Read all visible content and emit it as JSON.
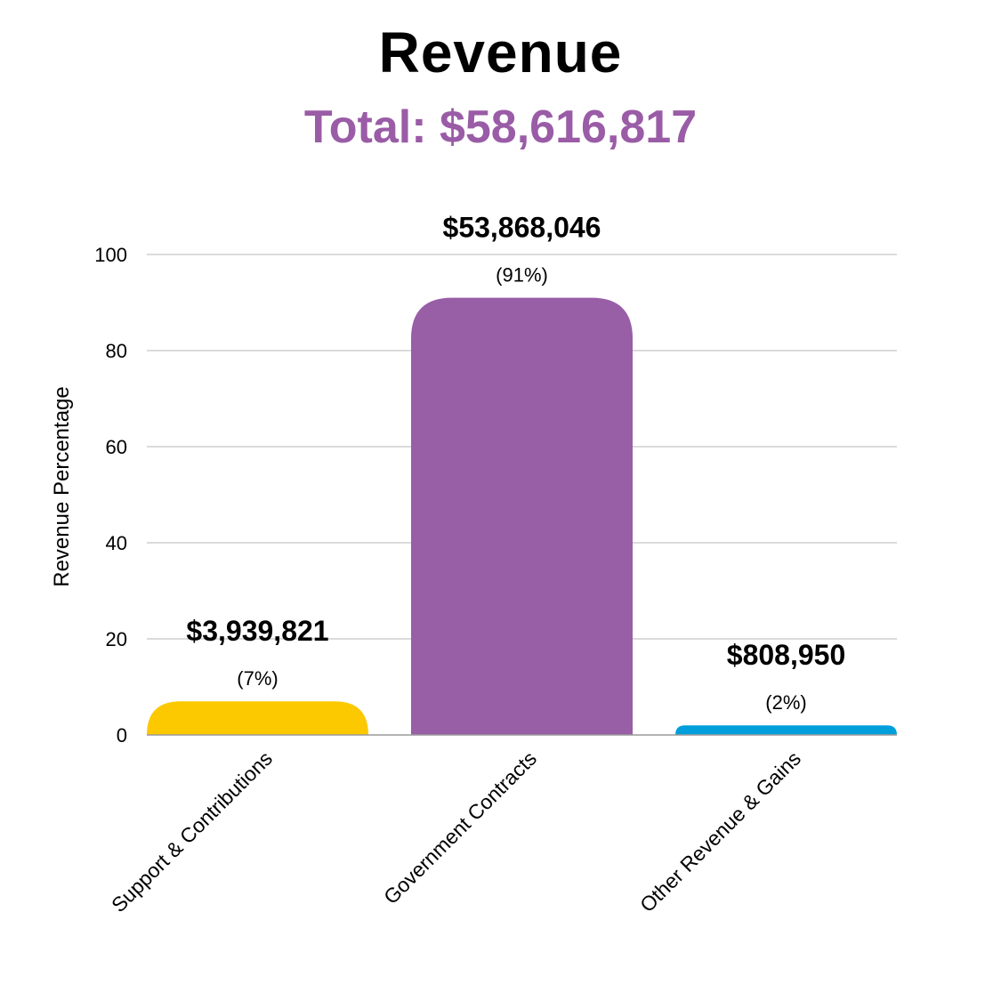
{
  "title": "Revenue",
  "subtitle": "Total: $58,616,817",
  "chart_data": {
    "type": "bar",
    "title": "Revenue",
    "subtitle": "Total: $58,616,817",
    "xlabel": "",
    "ylabel": "Revenue Percentage",
    "ylim": [
      0,
      100
    ],
    "yticks": [
      0,
      20,
      40,
      60,
      80,
      100
    ],
    "grid": true,
    "categories": [
      "Support & Contributions",
      "Government Contracts",
      "Other Revenue & Gains"
    ],
    "values": [
      7,
      91,
      2
    ],
    "amount_labels": [
      "$3,939,821",
      "$53,868,046",
      "$808,950"
    ],
    "percent_labels": [
      "(7%)",
      "(91%)",
      "(2%)"
    ],
    "colors": [
      "#fcc800",
      "#985ea6",
      "#009fdb"
    ]
  }
}
